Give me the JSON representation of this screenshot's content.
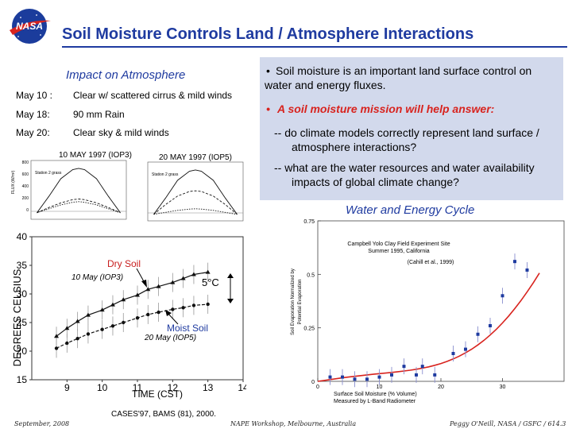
{
  "logo": {
    "text": "NASA",
    "colors": {
      "disc": "#1b3c9c",
      "swoosh": "#d8231e"
    }
  },
  "title": "Soil Moisture Controls Land / Atmosphere Interactions",
  "impact": {
    "heading": "Impact on Atmosphere",
    "rows": [
      {
        "date": "May 10 :",
        "desc": "Clear w/ scattered cirrus & mild winds"
      },
      {
        "date": "May 18:",
        "desc": "90 mm Rain"
      },
      {
        "date": "May 20:",
        "desc": "Clear sky & mild winds"
      }
    ]
  },
  "info": {
    "bullet1": "Soil moisture is an important land surface control on water and energy fluxes.",
    "bullet2": "A soil moisture mission will help answer:",
    "q1": "-- do climate models correctly represent land surface / atmosphere interactions?",
    "q2": "-- what are the water resources and water availability impacts of global climate change?",
    "colors": {
      "box": "#d2d9ec",
      "bullet2": "#d8231e"
    }
  },
  "flux": {
    "panel1": {
      "title": "10 MAY 1997 (IOP3)",
      "station": "Station 2 grass"
    },
    "panel2": {
      "title": "20 MAY 1997 (IOP5)",
      "station": "Station 2 grass"
    },
    "y_label": "FLUX (W/m²)",
    "y_ticks": [
      "800",
      "600",
      "400",
      "200",
      "0"
    ]
  },
  "temp_chart": {
    "y_title": "DEGREES CELSIUS",
    "x_title": "TIME (CST)",
    "y_ticks": [
      "40",
      "35",
      "30",
      "25",
      "20",
      "15"
    ],
    "x_ticks": [
      "9",
      "10",
      "11",
      "12",
      "13",
      "14"
    ],
    "dry_label": "Dry Soil",
    "moist_label": "Moist Soil",
    "dry_series": "10 May (IOP3)",
    "moist_series": "20 May (IOP5)",
    "diff_label": "5°C",
    "colors": {
      "dry": "#c81e1e",
      "moist": "#1f3ba0"
    }
  },
  "wec": {
    "heading": "Water and Energy Cycle",
    "chart_title_1": "Campbell Yolo Clay Field Experiment Site",
    "chart_title_2": "Summer 1995, California",
    "chart_title_3": "(Cahill et al., 1999)",
    "y_label_1": "Soil Evaporation Normalized by",
    "y_label_2": "Potential Evaporation",
    "x_label_1": "Surface Soil Moisture (% Volume)",
    "x_label_2": "Measured by L-Band Radiometer",
    "y_ticks": [
      "0.75",
      "0.5",
      "0.25",
      "0"
    ],
    "x_ticks": [
      "0",
      "10",
      "20",
      "30"
    ]
  },
  "citation": "CASES'97, BAMS (81), 2000.",
  "footer": {
    "left": "September, 2008",
    "center": "NAPE Workshop, Melbourne, Australia",
    "right": "Peggy O'Neill, NASA / GSFC / 614.3"
  },
  "chart_data": [
    {
      "type": "line",
      "title": "10 MAY 1997 (IOP3)",
      "ylabel": "FLUX (W/m²)",
      "ylim": [
        -100,
        800
      ],
      "x": [
        5,
        7,
        9,
        11,
        12,
        13,
        15,
        17,
        19
      ],
      "series": [
        {
          "name": "",
          "values": [
            0,
            250,
            520,
            660,
            680,
            660,
            520,
            250,
            0
          ]
        },
        {
          "name": "",
          "values": [
            0,
            80,
            150,
            200,
            210,
            200,
            150,
            80,
            0
          ]
        },
        {
          "name": "",
          "values": [
            0,
            60,
            120,
            160,
            170,
            160,
            120,
            60,
            0
          ]
        }
      ]
    },
    {
      "type": "line",
      "title": "20 MAY 1997 (IOP5)",
      "ylim": [
        -100,
        800
      ],
      "x": [
        5,
        7,
        9,
        11,
        12,
        13,
        15,
        17,
        19
      ],
      "series": [
        {
          "name": "",
          "values": [
            0,
            250,
            520,
            660,
            680,
            660,
            520,
            250,
            0
          ]
        },
        {
          "name": "",
          "values": [
            0,
            150,
            280,
            350,
            360,
            350,
            280,
            150,
            0
          ]
        },
        {
          "name": "",
          "values": [
            0,
            30,
            60,
            80,
            85,
            80,
            60,
            30,
            0
          ]
        }
      ]
    },
    {
      "type": "line",
      "xlabel": "TIME (CST)",
      "ylabel": "DEGREES CELSIUS",
      "xlim": [
        8,
        14
      ],
      "ylim": [
        15,
        40
      ],
      "series": [
        {
          "name": "10 May (IOP3)",
          "x": [
            8.7,
            9.0,
            9.3,
            9.6,
            10.0,
            10.3,
            10.6,
            11.0,
            11.3,
            11.6,
            12.0,
            12.3,
            12.6,
            13.0
          ],
          "values": [
            22.6,
            24.0,
            25.2,
            26.3,
            27.2,
            28.1,
            29.0,
            29.8,
            30.8,
            31.3,
            32.0,
            32.7,
            33.4,
            33.8
          ]
        },
        {
          "name": "20 May (IOP5)",
          "x": [
            8.7,
            9.0,
            9.3,
            9.6,
            10.0,
            10.3,
            10.6,
            11.0,
            11.3,
            11.6,
            12.0,
            12.3,
            12.6,
            13.0
          ],
          "values": [
            20.5,
            21.4,
            22.2,
            23.0,
            23.8,
            24.4,
            25.0,
            25.8,
            26.4,
            26.8,
            27.3,
            27.6,
            28.0,
            28.2
          ]
        }
      ]
    },
    {
      "type": "scatter",
      "title": "Campbell Yolo Clay Field Experiment Site",
      "xlabel": "Surface Soil Moisture (% Volume)",
      "ylabel": "Soil Evaporation Normalized by Potential Evaporation",
      "xlim": [
        0,
        40
      ],
      "ylim": [
        0,
        0.75
      ],
      "series": [
        {
          "name": "",
          "x": [
            2,
            4,
            6,
            8,
            10,
            12,
            14,
            16,
            17,
            19,
            22,
            24,
            26,
            28,
            30,
            32,
            34
          ],
          "values": [
            0.02,
            0.02,
            0.01,
            0.01,
            0.02,
            0.03,
            0.07,
            0.03,
            0.07,
            0.03,
            0.13,
            0.15,
            0.22,
            0.26,
            0.4,
            0.56,
            0.52
          ]
        }
      ]
    }
  ]
}
